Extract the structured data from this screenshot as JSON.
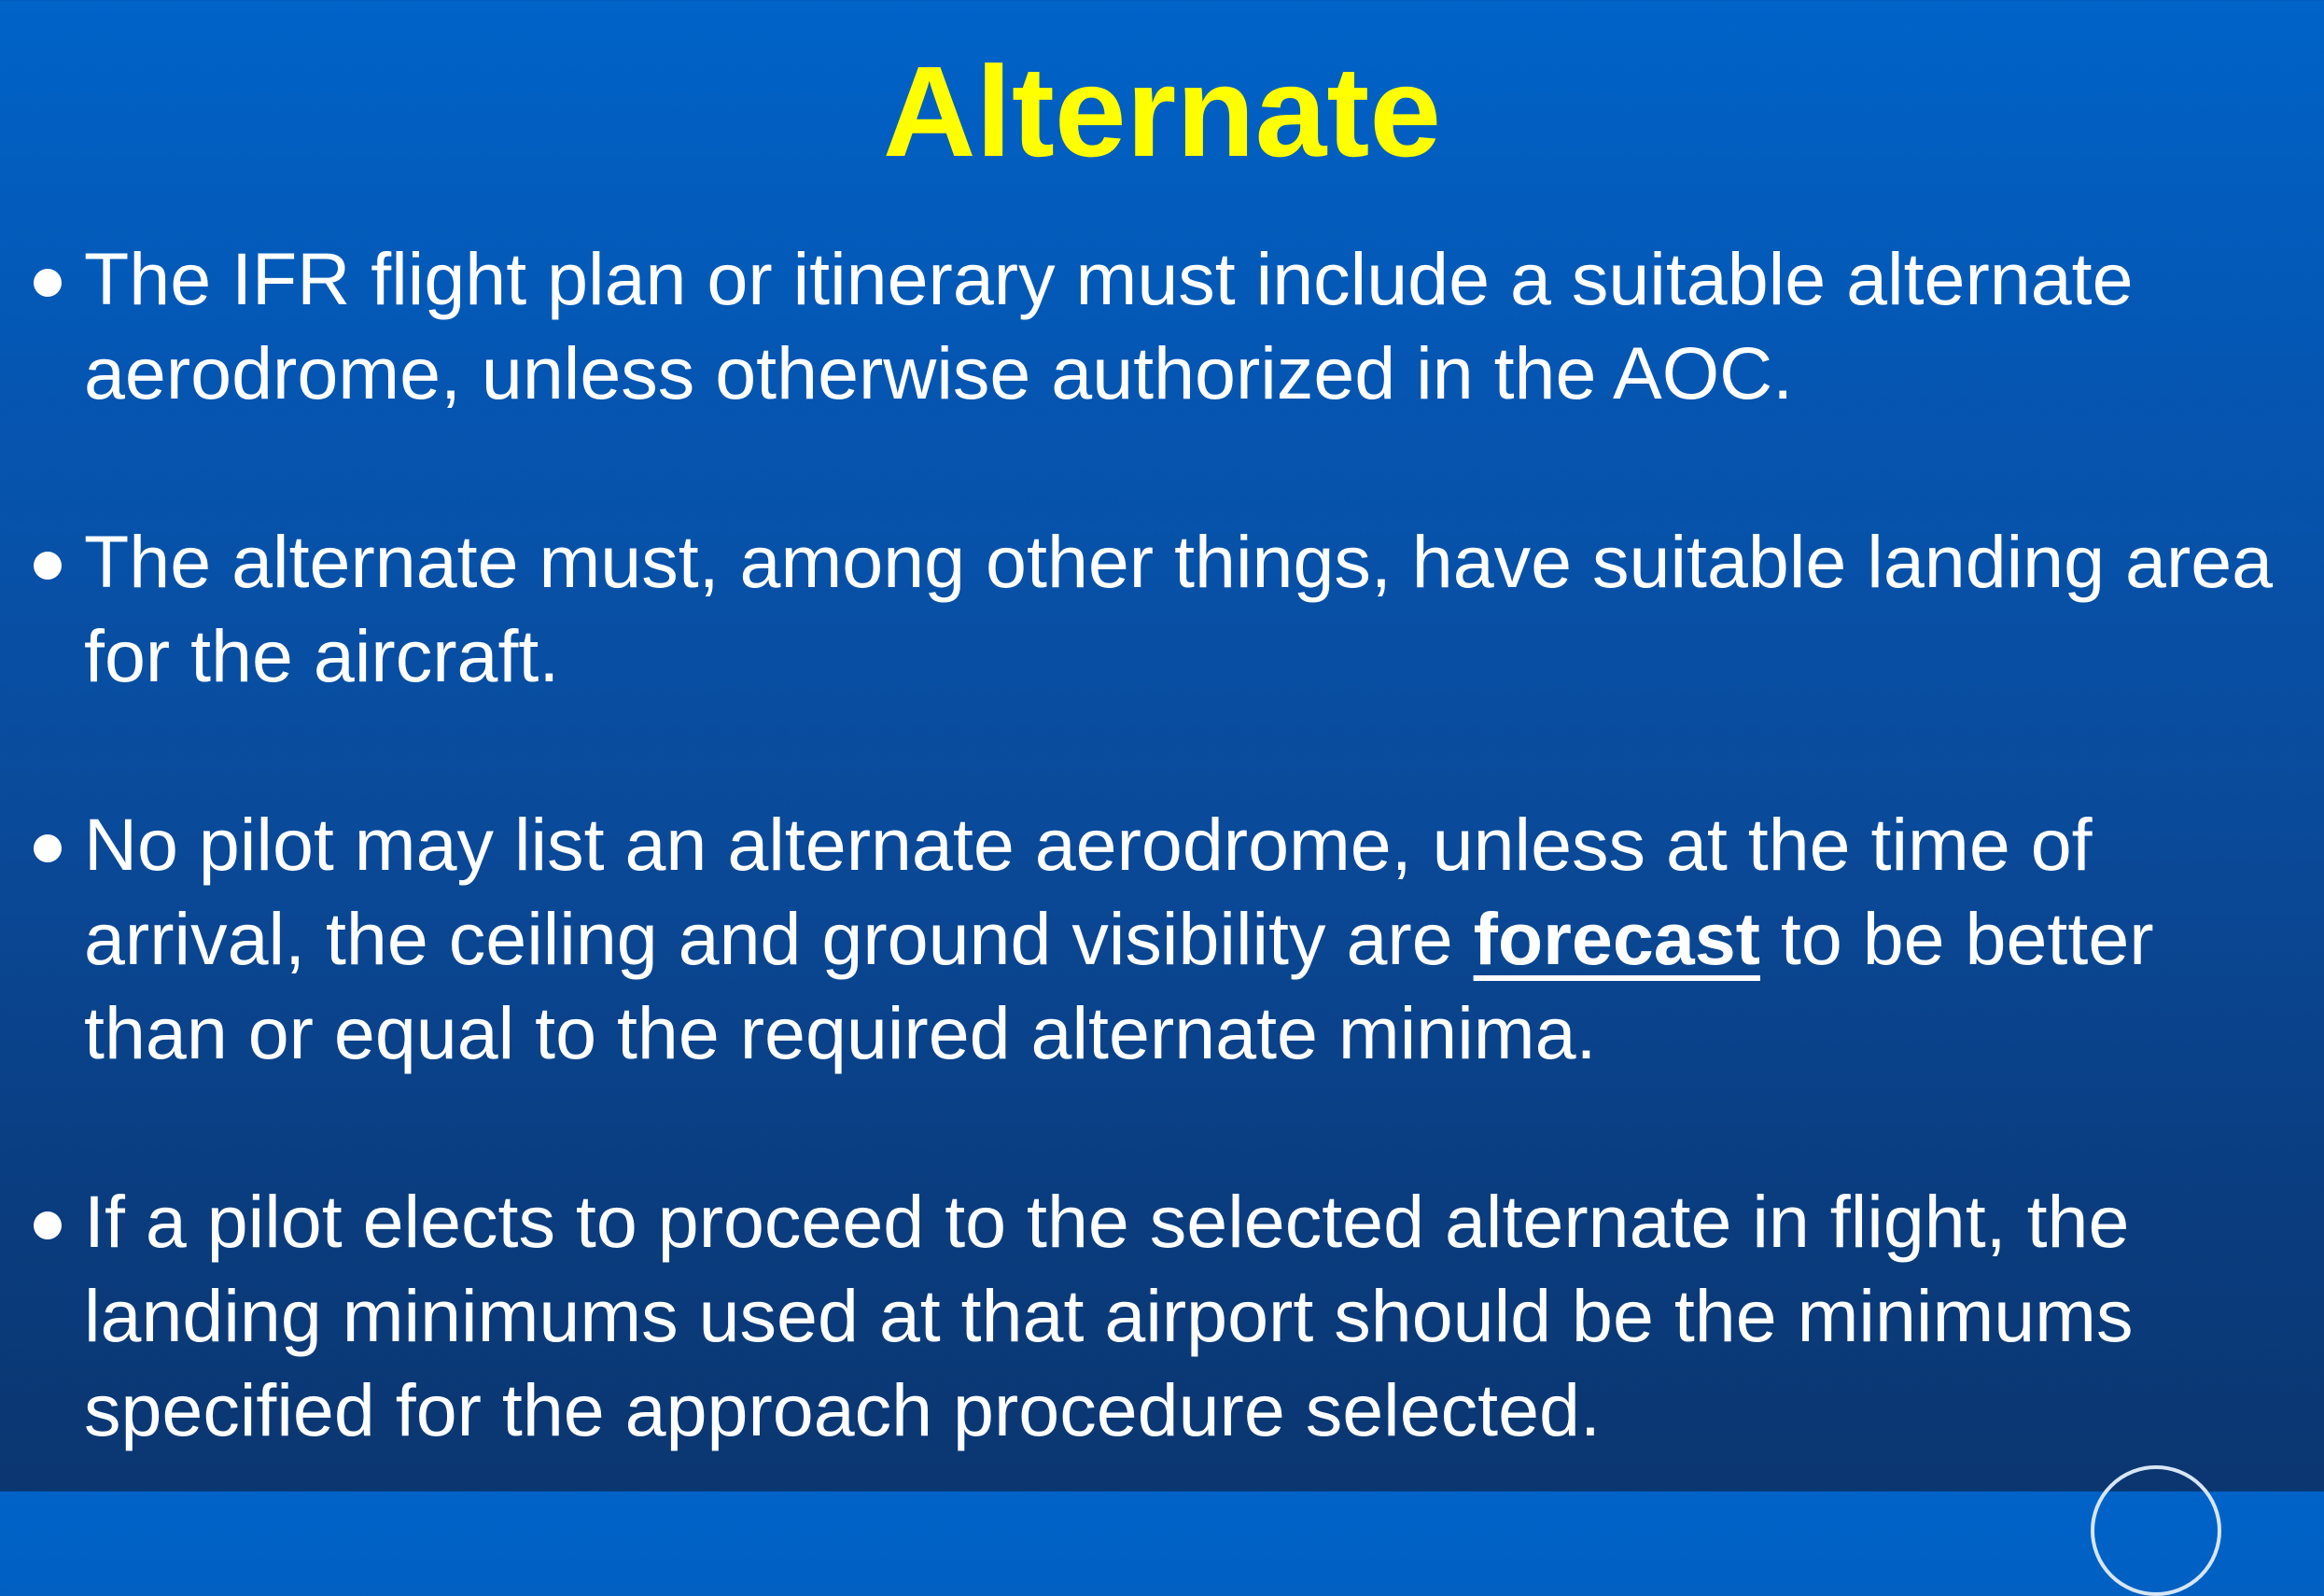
{
  "slide": {
    "title": "Alternate",
    "bullets": [
      {
        "text": "The IFR flight plan or itinerary must include a suitable alternate aerodrome, unless otherwise authorized in the AOC."
      },
      {
        "text": "The alternate must, among other things, have suitable landing area for the aircraft."
      },
      {
        "before": "No pilot may list an alternate aerodrome, unless at the time of arrival, the ceiling and ground visibility are ",
        "emphasis": "forecast",
        "after": " to be better than or equal to the required alternate minima."
      },
      {
        "text": "If a pilot elects to proceed to the selected alternate in flight, the landing minimums used at that airport should be the minimums specified for the approach procedure selected."
      }
    ]
  },
  "colors": {
    "title": "#ffff00",
    "body_text": "#ffffff",
    "background_top": "#0063c8",
    "background_bottom": "#0b3670"
  }
}
